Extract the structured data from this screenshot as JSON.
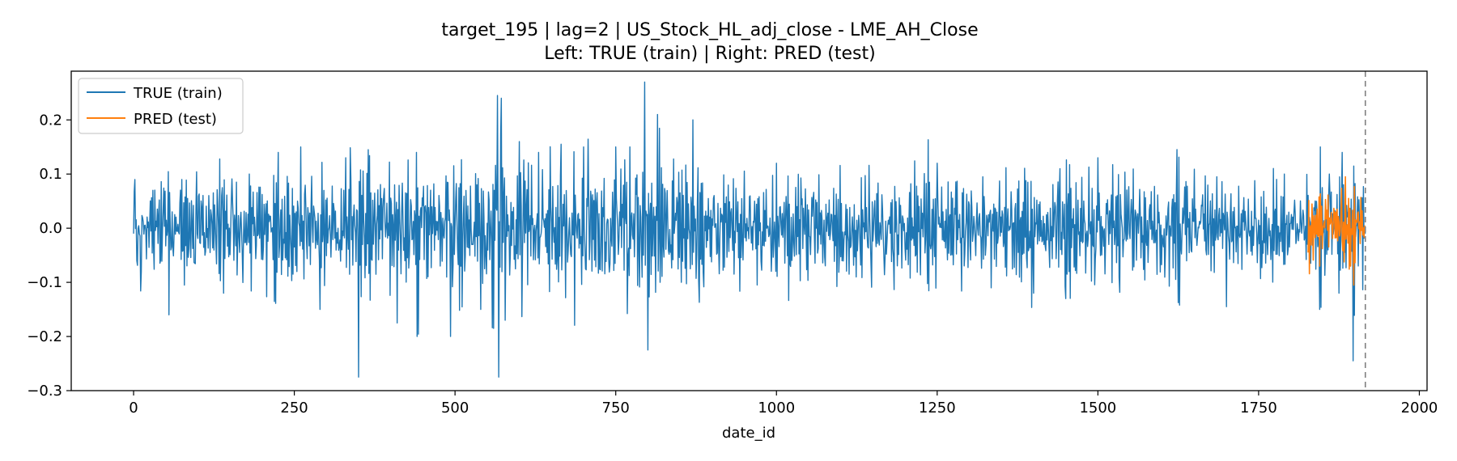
{
  "chart_data": {
    "type": "line",
    "title_line1": "target_195 | lag=2 | US_Stock_HL_adj_close - LME_AH_Close",
    "title_line2": "Left: TRUE (train) | Right: PRED (test)",
    "xlabel": "date_id",
    "ylabel": "",
    "xlim": [
      -97,
      2012
    ],
    "ylim": [
      -0.3,
      0.29
    ],
    "x_ticks": [
      0,
      250,
      500,
      750,
      1000,
      1250,
      1500,
      1750,
      2000
    ],
    "x_tick_labels": [
      "0",
      "250",
      "500",
      "750",
      "1000",
      "1250",
      "1500",
      "1750",
      "2000"
    ],
    "y_ticks": [
      -0.3,
      -0.2,
      -0.1,
      0.0,
      0.1,
      0.2
    ],
    "y_tick_labels": [
      "−0.3",
      "−0.2",
      "−0.1",
      "0.0",
      "0.1",
      "0.2"
    ],
    "grid": false,
    "legend_placement": "top-left",
    "split_x": 1916,
    "series": [
      {
        "name": "TRUE (train)",
        "color": "#1f77b4",
        "x_start": 0,
        "x_end": 1916,
        "anchors": [
          [
            0,
            -0.01
          ],
          [
            2,
            0.09
          ],
          [
            5,
            -0.06
          ],
          [
            12,
            -0.08
          ],
          [
            30,
            0.07
          ],
          [
            55,
            -0.16
          ],
          [
            75,
            0.09
          ],
          [
            140,
            -0.12
          ],
          [
            180,
            0.1
          ],
          [
            225,
            0.14
          ],
          [
            260,
            0.15
          ],
          [
            290,
            -0.15
          ],
          [
            330,
            0.13
          ],
          [
            350,
            -0.275
          ],
          [
            365,
            0.145
          ],
          [
            410,
            -0.175
          ],
          [
            440,
            0.14
          ],
          [
            540,
            -0.15
          ],
          [
            560,
            -0.185
          ],
          [
            566,
            0.245
          ],
          [
            568,
            -0.275
          ],
          [
            572,
            0.24
          ],
          [
            578,
            -0.17
          ],
          [
            600,
            0.16
          ],
          [
            630,
            0.14
          ],
          [
            665,
            0.155
          ],
          [
            700,
            0.15
          ],
          [
            750,
            0.15
          ],
          [
            795,
            0.27
          ],
          [
            800,
            -0.225
          ],
          [
            815,
            0.21
          ],
          [
            870,
            0.2
          ],
          [
            1000,
            0.12
          ],
          [
            1250,
            0.12
          ],
          [
            1400,
            -0.12
          ],
          [
            1450,
            -0.13
          ],
          [
            1500,
            0.13
          ],
          [
            1700,
            -0.145
          ],
          [
            1790,
            0.1
          ],
          [
            1845,
            -0.15
          ],
          [
            1860,
            0.1
          ],
          [
            1880,
            0.14
          ],
          [
            1897,
            -0.245
          ],
          [
            1910,
            0.05
          ],
          [
            1916,
            -0.01
          ]
        ]
      },
      {
        "name": "PRED (test)",
        "color": "#ff7f0e",
        "x_start": 1827,
        "x_end": 1916,
        "anchors": [
          [
            1830,
            0.0
          ],
          [
            1845,
            -0.07
          ],
          [
            1870,
            0.03
          ],
          [
            1885,
            0.095
          ],
          [
            1893,
            -0.07
          ],
          [
            1898,
            -0.105
          ],
          [
            1905,
            0.03
          ],
          [
            1916,
            0.0
          ]
        ]
      }
    ]
  }
}
